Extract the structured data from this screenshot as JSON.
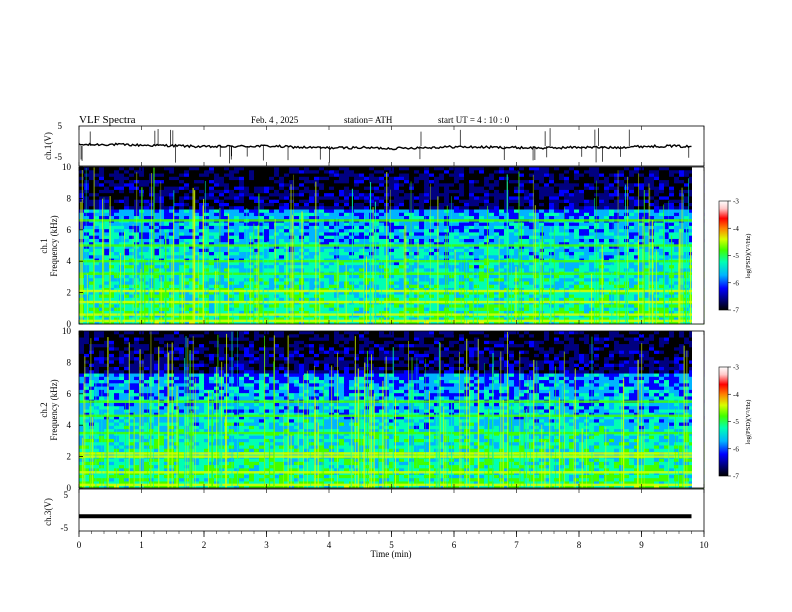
{
  "header": {
    "title": "VLF  Spectra",
    "date": "Feb. 4 , 2025",
    "station": "station= ATH",
    "start": "start  UT  =   4  : 10 : 0"
  },
  "colors": {
    "spectrogram_scale": [
      "#000000",
      "#000080",
      "#0000ff",
      "#00b4ff",
      "#00ffb4",
      "#40ff00",
      "#d8ff00",
      "#ff8000",
      "#ff0000",
      "#ffc8c8",
      "#ffffff"
    ],
    "trace": "#000000"
  },
  "chart_data": [
    {
      "type": "line",
      "name": "ch1-waveform",
      "ylabel": "ch.1(V)",
      "ylim": [
        -5,
        5
      ],
      "yticks": [
        "5",
        "-5"
      ],
      "x": [
        0,
        0.5,
        1,
        1.5,
        2,
        2.5,
        3,
        3.5,
        4,
        4.5,
        5,
        5.5,
        6,
        6.5,
        7,
        7.5,
        8,
        8.5,
        9,
        9.5,
        9.8
      ],
      "y": [
        0.3,
        0.4,
        0.2,
        0.1,
        -0.2,
        -0.1,
        0.0,
        -0.3,
        -0.5,
        -0.4,
        -0.6,
        -0.4,
        -0.2,
        -0.3,
        -0.4,
        -0.5,
        -0.3,
        -0.4,
        -0.1,
        0.0,
        -0.2
      ]
    },
    {
      "type": "heatmap",
      "name": "ch1-spectrogram",
      "ylabel_channel": "ch.1",
      "ylabel": "Frequency  (kHz)",
      "ylim": [
        0,
        10
      ],
      "yticks": [
        "0",
        "2",
        "4",
        "6",
        "8",
        "10"
      ],
      "colorbar_label": "log(PSD)(V²/Hz)",
      "colorbar_ticks": [
        "-3",
        "-4",
        "-5",
        "-6",
        "-7"
      ],
      "clim": [
        -7,
        -3
      ],
      "bands_khz": [
        0.2,
        0.6,
        1.4,
        2.1,
        3.2,
        4.0,
        5.0,
        6.6
      ]
    },
    {
      "type": "heatmap",
      "name": "ch2-spectrogram",
      "ylabel_channel": "ch.2",
      "ylabel": "Frequency  (kHz)",
      "ylim": [
        0,
        10
      ],
      "yticks": [
        "0",
        "2",
        "4",
        "6",
        "8",
        "10"
      ],
      "colorbar_label": "log(PSD)(V²/Hz)",
      "colorbar_ticks": [
        "-3",
        "-4",
        "-5",
        "-6",
        "-7"
      ],
      "clim": [
        -7,
        -3
      ],
      "bands_khz": [
        0.2,
        1.0,
        2.0,
        2.2,
        3.5,
        4.6,
        5.5
      ]
    },
    {
      "type": "line",
      "name": "ch3-waveform",
      "ylabel": "ch.3(V)",
      "ylim": [
        -5,
        5
      ],
      "yticks": [
        "5",
        "-5"
      ],
      "x": [
        0,
        9.8
      ],
      "y": [
        -1.5,
        -1.5
      ]
    }
  ],
  "xaxis": {
    "xlabel": "Time  (min)",
    "xlim": [
      0,
      10
    ],
    "xticks": [
      "0",
      "1",
      "2",
      "3",
      "4",
      "5",
      "6",
      "7",
      "8",
      "9",
      "10"
    ]
  }
}
